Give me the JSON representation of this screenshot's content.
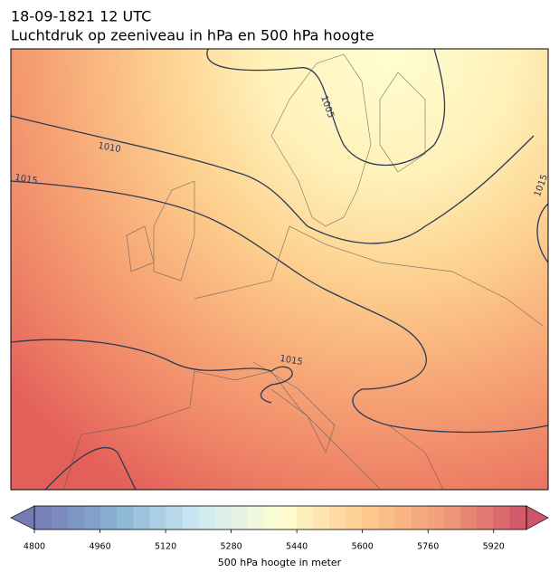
{
  "header": {
    "title": "18-09-1821 12 UTC",
    "subtitle": "Luchtdruk op zeeniveau in hPa en 500 hPa hoogte"
  },
  "map": {
    "contour_labels": [
      "1005",
      "1010",
      "1015",
      "1015",
      "1015"
    ]
  },
  "colorbar": {
    "label": "500 hPa hoogte in meter",
    "lim": [
      4800,
      6000
    ],
    "step": 40,
    "ticks": [
      4800,
      4960,
      5120,
      5280,
      5440,
      5600,
      5760,
      5920
    ],
    "colors": [
      "#5e64a8",
      "#74a6cc",
      "#c4e4ef",
      "#fffecb",
      "#fdc47c",
      "#f08a62",
      "#c8384e"
    ]
  }
}
